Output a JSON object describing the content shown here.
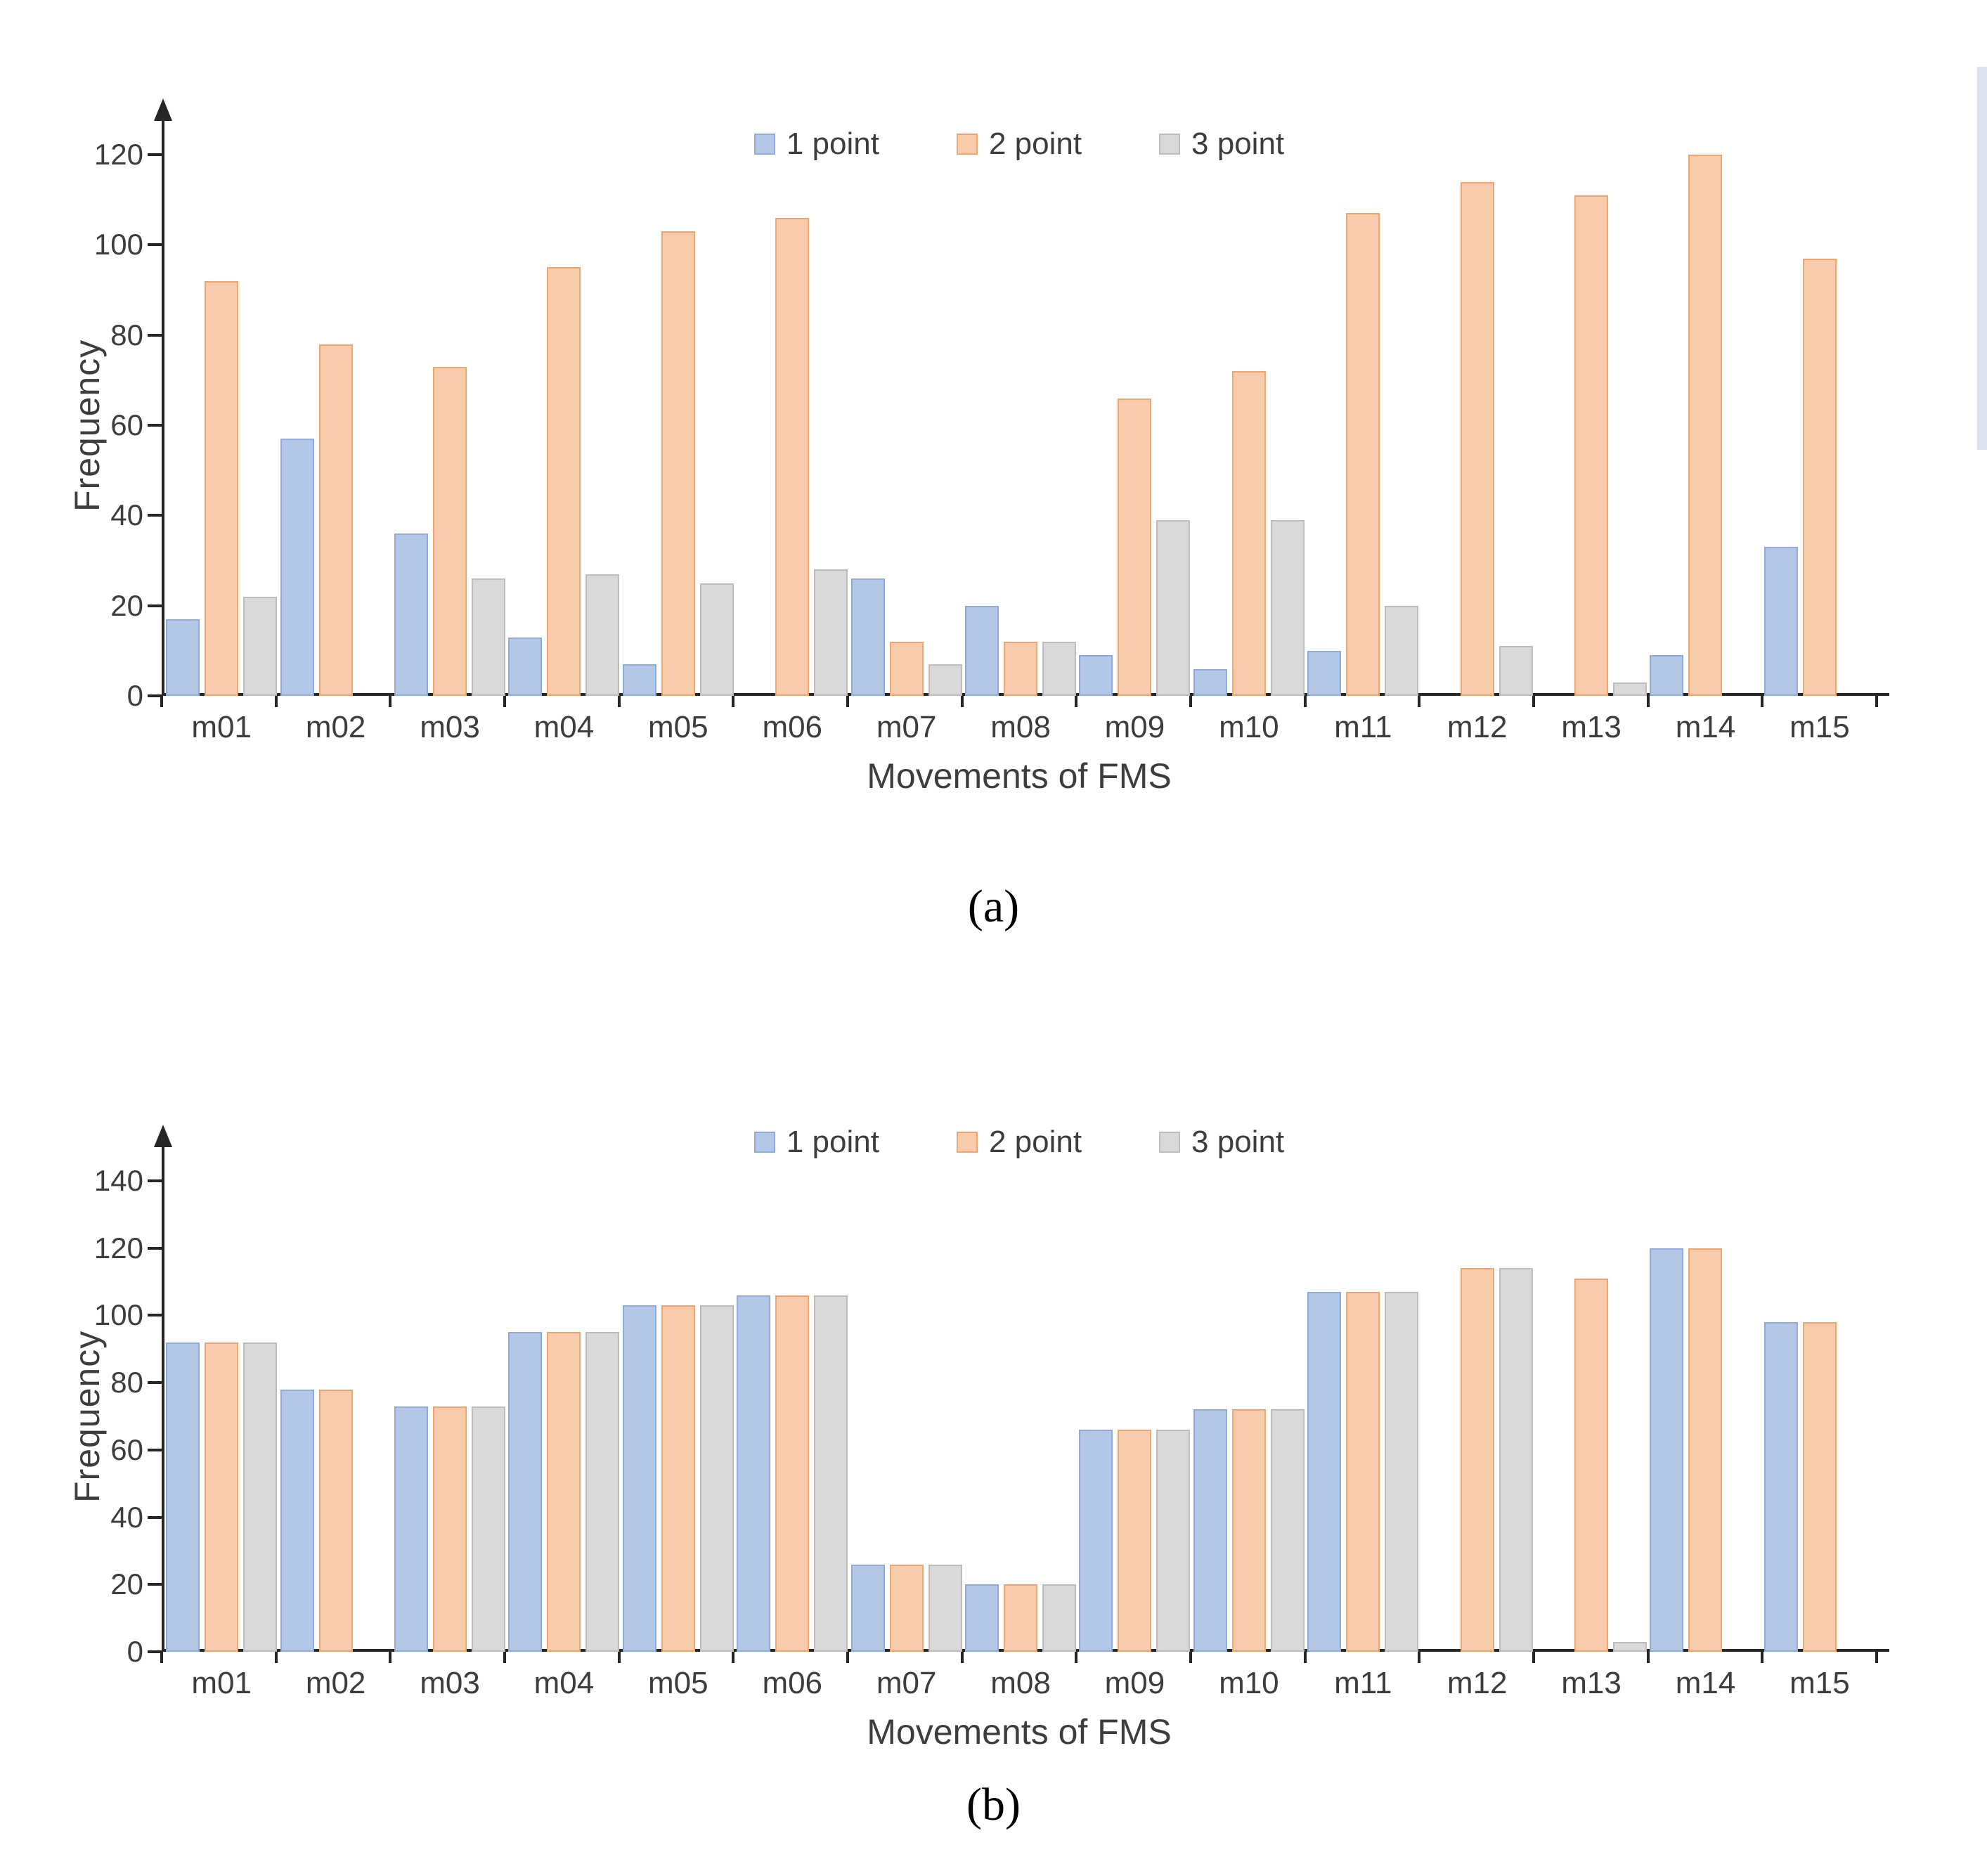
{
  "colors": {
    "axis": "#262626",
    "text": "#3d3d3d",
    "series1_fill": "#b4c7e7",
    "series1_stroke": "#8faadc",
    "series2_fill": "#f8cbad",
    "series2_stroke": "#f2a46a",
    "series3_fill": "#d9d9d9",
    "series3_stroke": "#bdbdbd"
  },
  "chart_data": [
    {
      "type": "bar",
      "caption": "(a)",
      "title": "",
      "xlabel": "Movements of FMS",
      "ylabel": "Frequency",
      "ymax": 120,
      "ylim": [
        0,
        120
      ],
      "yticks": [
        0,
        20,
        40,
        60,
        80,
        100,
        120
      ],
      "grid": false,
      "legend_position": "top-center",
      "legend": [
        "1 point",
        "2 point",
        "3 point"
      ],
      "categories": [
        "m01",
        "m02",
        "m03",
        "m04",
        "m05",
        "m06",
        "m07",
        "m08",
        "m09",
        "m10",
        "m11",
        "m12",
        "m13",
        "m14",
        "m15"
      ],
      "series": [
        {
          "name": "1 point",
          "fill": "#b4c7e7",
          "stroke": "#8faadc",
          "values": [
            17,
            57,
            36,
            13,
            7,
            0,
            26,
            20,
            9,
            6,
            10,
            0,
            0,
            9,
            33
          ]
        },
        {
          "name": "2 point",
          "fill": "#f8cbad",
          "stroke": "#f2a46a",
          "values": [
            92,
            78,
            73,
            95,
            103,
            106,
            12,
            12,
            66,
            72,
            107,
            114,
            111,
            120,
            97
          ]
        },
        {
          "name": "3 point",
          "fill": "#d9d9d9",
          "stroke": "#bdbdbd",
          "values": [
            22,
            0,
            26,
            27,
            25,
            28,
            7,
            12,
            39,
            39,
            20,
            11,
            3,
            0,
            0
          ]
        }
      ]
    },
    {
      "type": "bar",
      "caption": "(b)",
      "title": "",
      "xlabel": "Movements of FMS",
      "ylabel": "Frequency",
      "ymax": 140,
      "ylim": [
        0,
        140
      ],
      "yticks": [
        0,
        20,
        40,
        60,
        80,
        100,
        120,
        140
      ],
      "grid": false,
      "legend_position": "top-center",
      "legend": [
        "1 point",
        "2 point",
        "3 point"
      ],
      "categories": [
        "m01",
        "m02",
        "m03",
        "m04",
        "m05",
        "m06",
        "m07",
        "m08",
        "m09",
        "m10",
        "m11",
        "m12",
        "m13",
        "m14",
        "m15"
      ],
      "series": [
        {
          "name": "1 point",
          "fill": "#b4c7e7",
          "stroke": "#8faadc",
          "values": [
            92,
            78,
            73,
            95,
            103,
            106,
            26,
            20,
            66,
            72,
            107,
            0,
            0,
            120,
            98
          ]
        },
        {
          "name": "2 point",
          "fill": "#f8cbad",
          "stroke": "#f2a46a",
          "values": [
            92,
            78,
            73,
            95,
            103,
            106,
            26,
            20,
            66,
            72,
            107,
            114,
            111,
            120,
            98
          ]
        },
        {
          "name": "3 point",
          "fill": "#d9d9d9",
          "stroke": "#bdbdbd",
          "values": [
            92,
            0,
            73,
            95,
            103,
            106,
            26,
            20,
            66,
            72,
            107,
            114,
            3,
            0,
            0
          ]
        }
      ]
    }
  ]
}
